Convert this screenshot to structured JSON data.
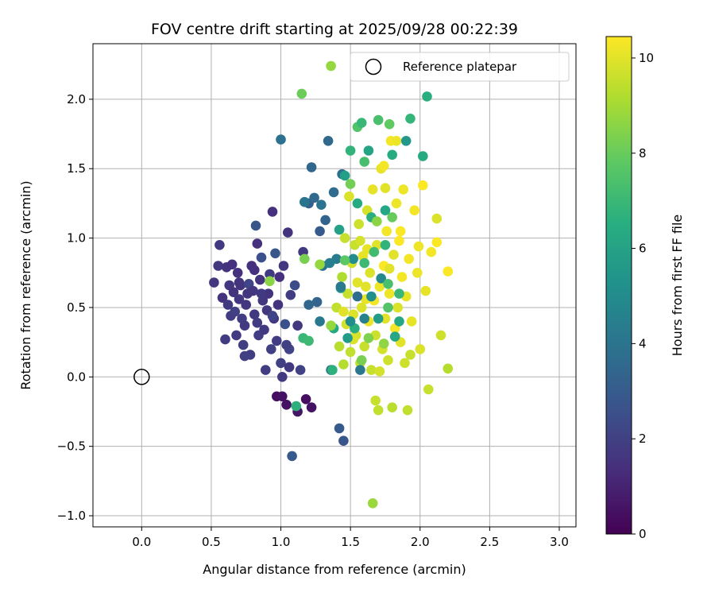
{
  "chart_data": {
    "type": "scatter",
    "title": "FOV centre drift starting at 2025/09/28 00:22:39",
    "xlabel": "Angular distance from reference (arcmin)",
    "ylabel": "Rotation from reference (arcmin)",
    "xlim": [
      -0.35,
      3.12
    ],
    "ylim": [
      -1.08,
      2.4
    ],
    "xticks": [
      0.0,
      0.5,
      1.0,
      1.5,
      2.0,
      2.5,
      3.0
    ],
    "xtick_labels": [
      "0.0",
      "0.5",
      "1.0",
      "1.5",
      "2.0",
      "2.5",
      "3.0"
    ],
    "yticks": [
      -1.0,
      -0.5,
      0.0,
      0.5,
      1.0,
      1.5,
      2.0
    ],
    "ytick_labels": [
      "−1.0",
      "−0.5",
      "0.0",
      "0.5",
      "1.0",
      "1.5",
      "2.0"
    ],
    "grid": true,
    "legend": {
      "position": "top-right",
      "entries": [
        "Reference platepar"
      ]
    },
    "reference_point": {
      "x": 0.0,
      "y": 0.0,
      "label": "Reference platepar"
    },
    "colorbar": {
      "label": "Hours from first FF file",
      "min": 0,
      "max": 10.45,
      "ticks": [
        0,
        2,
        4,
        6,
        8,
        10
      ],
      "tick_labels": [
        "0",
        "2",
        "4",
        "6",
        "8",
        "10"
      ],
      "colormap": "viridis"
    },
    "points": [
      [
        0.52,
        0.68,
        1.7
      ],
      [
        0.56,
        0.95,
        1.8
      ],
      [
        0.55,
        0.8,
        1.7
      ],
      [
        0.58,
        0.57,
        1.6
      ],
      [
        0.6,
        0.27,
        1.9
      ],
      [
        0.61,
        0.79,
        1.6
      ],
      [
        0.62,
        0.52,
        1.8
      ],
      [
        0.63,
        0.66,
        1.7
      ],
      [
        0.64,
        0.44,
        1.9
      ],
      [
        0.65,
        0.81,
        1.5
      ],
      [
        0.66,
        0.61,
        1.6
      ],
      [
        0.67,
        0.47,
        2.0
      ],
      [
        0.68,
        0.3,
        1.8
      ],
      [
        0.69,
        0.75,
        1.5
      ],
      [
        0.7,
        0.56,
        1.7
      ],
      [
        0.71,
        0.66,
        1.6
      ],
      [
        0.72,
        0.42,
        1.9
      ],
      [
        0.73,
        0.23,
        2.0
      ],
      [
        0.74,
        0.37,
        1.8
      ],
      [
        0.75,
        0.52,
        1.7
      ],
      [
        0.76,
        0.6,
        1.6
      ],
      [
        0.77,
        0.67,
        2.2
      ],
      [
        0.78,
        0.16,
        1.9
      ],
      [
        0.79,
        0.8,
        1.5
      ],
      [
        0.8,
        0.62,
        1.7
      ],
      [
        0.81,
        0.45,
        1.8
      ],
      [
        0.82,
        1.09,
        2.8
      ],
      [
        0.83,
        0.96,
        1.5
      ],
      [
        0.84,
        0.3,
        1.9
      ],
      [
        0.85,
        0.7,
        1.6
      ],
      [
        0.86,
        0.86,
        2.6
      ],
      [
        0.87,
        0.55,
        1.7
      ],
      [
        0.88,
        0.34,
        1.8
      ],
      [
        0.89,
        0.05,
        1.9
      ],
      [
        0.9,
        0.48,
        1.7
      ],
      [
        0.91,
        0.6,
        1.6
      ],
      [
        0.92,
        0.74,
        1.8
      ],
      [
        0.93,
        0.2,
        2.0
      ],
      [
        0.94,
        1.19,
        1.5
      ],
      [
        0.95,
        0.42,
        1.7
      ],
      [
        0.96,
        0.89,
        2.8
      ],
      [
        0.97,
        0.26,
        1.9
      ],
      [
        0.98,
        0.52,
        1.6
      ],
      [
        0.99,
        0.72,
        1.5
      ],
      [
        1.0,
        0.1,
        2.0
      ],
      [
        1.01,
        0.0,
        1.8
      ],
      [
        1.02,
        0.8,
        1.7
      ],
      [
        1.03,
        0.38,
        2.6
      ],
      [
        1.04,
        -0.2,
        0.5
      ],
      [
        1.05,
        1.04,
        1.6
      ],
      [
        1.06,
        0.2,
        2.2
      ],
      [
        1.07,
        0.59,
        1.9
      ],
      [
        1.08,
        -0.57,
        3.0
      ],
      [
        1.1,
        0.66,
        2.4
      ],
      [
        1.12,
        -0.25,
        0.6
      ],
      [
        1.14,
        0.05,
        2.1
      ],
      [
        1.16,
        0.9,
        1.8
      ],
      [
        1.18,
        -0.16,
        0.4
      ],
      [
        1.2,
        1.25,
        3.2
      ],
      [
        1.22,
        -0.22,
        0.5
      ],
      [
        1.24,
        1.29,
        3.6
      ],
      [
        1.26,
        0.54,
        3.4
      ],
      [
        1.28,
        0.4,
        4.2
      ],
      [
        1.3,
        0.8,
        4.0
      ],
      [
        1.32,
        1.13,
        3.4
      ],
      [
        1.34,
        1.7,
        3.6
      ],
      [
        1.36,
        0.05,
        4.0
      ],
      [
        1.38,
        1.33,
        3.7
      ],
      [
        1.4,
        0.85,
        4.4
      ],
      [
        1.42,
        -0.37,
        3.0
      ],
      [
        1.44,
        1.46,
        3.8
      ],
      [
        1.45,
        -0.46,
        2.8
      ],
      [
        1.0,
        1.71,
        3.9
      ],
      [
        1.06,
        0.07,
        1.8
      ],
      [
        0.97,
        -0.14,
        0.4
      ],
      [
        1.01,
        -0.14,
        0.5
      ],
      [
        1.11,
        -0.21,
        6.7
      ],
      [
        1.12,
        0.37,
        1.7
      ],
      [
        0.86,
        0.6,
        1.8
      ],
      [
        0.94,
        0.44,
        2.2
      ],
      [
        0.83,
        0.39,
        1.9
      ],
      [
        0.7,
        0.68,
        1.6
      ],
      [
        0.74,
        0.15,
        2.0
      ],
      [
        0.81,
        0.77,
        1.5
      ],
      [
        1.04,
        0.23,
        2.0
      ],
      [
        1.22,
        1.51,
        3.5
      ],
      [
        1.29,
        1.24,
        4.0
      ],
      [
        1.35,
        0.82,
        4.5
      ],
      [
        1.17,
        1.26,
        4.1
      ],
      [
        1.15,
        2.04,
        8.1
      ],
      [
        1.36,
        2.24,
        8.8
      ],
      [
        1.4,
        0.5,
        9.5
      ],
      [
        1.42,
        0.22,
        9.4
      ],
      [
        1.44,
        0.72,
        9.2
      ],
      [
        1.45,
        0.09,
        9.3
      ],
      [
        1.46,
        1.0,
        9.6
      ],
      [
        1.47,
        0.38,
        9.8
      ],
      [
        1.48,
        0.6,
        9.6
      ],
      [
        1.49,
        1.3,
        9.9
      ],
      [
        1.5,
        0.18,
        9.5
      ],
      [
        1.51,
        0.82,
        9.7
      ],
      [
        1.52,
        0.45,
        9.9
      ],
      [
        1.53,
        0.95,
        9.6
      ],
      [
        1.54,
        0.3,
        9.8
      ],
      [
        1.55,
        0.68,
        10.0
      ],
      [
        1.56,
        1.1,
        9.7
      ],
      [
        1.57,
        0.1,
        9.5
      ],
      [
        1.58,
        0.5,
        9.9
      ],
      [
        1.59,
        0.87,
        10.1
      ],
      [
        1.6,
        0.22,
        9.6
      ],
      [
        1.61,
        0.65,
        10.0
      ],
      [
        1.62,
        1.2,
        9.8
      ],
      [
        1.63,
        0.4,
        10.2
      ],
      [
        1.64,
        0.75,
        9.9
      ],
      [
        1.65,
        0.05,
        9.6
      ],
      [
        1.66,
        1.35,
        10.1
      ],
      [
        1.67,
        0.55,
        10.3
      ],
      [
        1.68,
        0.3,
        9.7
      ],
      [
        1.69,
        0.95,
        10.0
      ],
      [
        1.7,
        -0.24,
        9.5
      ],
      [
        1.71,
        0.65,
        10.2
      ],
      [
        1.72,
        1.5,
        10.1
      ],
      [
        1.73,
        0.2,
        9.8
      ],
      [
        1.74,
        0.8,
        10.4
      ],
      [
        1.75,
        0.42,
        10.0
      ],
      [
        1.76,
        1.05,
        10.3
      ],
      [
        1.77,
        0.12,
        9.7
      ],
      [
        1.78,
        0.6,
        10.2
      ],
      [
        1.79,
        1.7,
        10.3
      ],
      [
        1.8,
        -0.22,
        9.4
      ],
      [
        1.81,
        0.88,
        10.0
      ],
      [
        1.82,
        0.35,
        10.3
      ],
      [
        1.83,
        1.25,
        10.2
      ],
      [
        1.84,
        0.5,
        9.9
      ],
      [
        1.85,
        0.98,
        10.4
      ],
      [
        1.86,
        0.25,
        10.0
      ],
      [
        1.87,
        0.72,
        10.3
      ],
      [
        1.88,
        1.35,
        10.2
      ],
      [
        1.89,
        0.1,
        9.7
      ],
      [
        1.9,
        0.58,
        10.1
      ],
      [
        1.91,
        -0.24,
        9.5
      ],
      [
        1.92,
        0.85,
        10.3
      ],
      [
        1.94,
        0.4,
        10.1
      ],
      [
        1.96,
        1.2,
        10.3
      ],
      [
        1.98,
        0.75,
        10.2
      ],
      [
        2.0,
        0.2,
        9.9
      ],
      [
        2.02,
        1.38,
        10.4
      ],
      [
        2.04,
        0.62,
        10.1
      ],
      [
        2.06,
        -0.09,
        9.6
      ],
      [
        2.08,
        0.9,
        10.3
      ],
      [
        2.12,
        1.14,
        9.9
      ],
      [
        2.15,
        0.3,
        9.7
      ],
      [
        2.2,
        0.06,
        9.3
      ],
      [
        2.2,
        0.76,
        10.4
      ],
      [
        1.66,
        -0.91,
        8.9
      ],
      [
        1.68,
        -0.17,
        9.6
      ],
      [
        1.75,
        1.36,
        10.0
      ],
      [
        1.57,
        0.98,
        9.8
      ],
      [
        1.62,
        0.92,
        10.1
      ],
      [
        1.83,
        1.7,
        10.2
      ],
      [
        1.74,
        1.52,
        10.3
      ],
      [
        1.86,
        1.05,
        10.4
      ],
      [
        1.71,
        0.04,
        9.8
      ],
      [
        1.93,
        0.16,
        9.6
      ],
      [
        1.99,
        0.94,
        10.2
      ],
      [
        2.12,
        0.97,
        10.4
      ],
      [
        1.45,
        0.47,
        10.0
      ],
      [
        1.52,
        0.27,
        9.9
      ],
      [
        1.78,
        0.78,
        10.0
      ],
      [
        1.61,
        0.56,
        10.1
      ],
      [
        1.5,
        1.39,
        8.2
      ],
      [
        1.55,
        1.8,
        7.6
      ],
      [
        1.6,
        1.55,
        7.3
      ],
      [
        1.65,
        1.15,
        6.6
      ],
      [
        1.7,
        1.85,
        7.4
      ],
      [
        1.75,
        0.95,
        6.8
      ],
      [
        1.8,
        1.6,
        6.5
      ],
      [
        1.85,
        0.4,
        6.2
      ],
      [
        1.9,
        1.7,
        5.6
      ],
      [
        1.93,
        1.86,
        6.9
      ],
      [
        2.02,
        1.59,
        6.4
      ],
      [
        2.05,
        2.02,
        6.6
      ],
      [
        1.58,
        1.83,
        7.0
      ],
      [
        1.63,
        1.63,
        6.1
      ],
      [
        1.5,
        1.63,
        6.8
      ],
      [
        1.48,
        0.28,
        5.7
      ],
      [
        1.43,
        0.64,
        5.4
      ],
      [
        1.38,
        0.35,
        6.3
      ],
      [
        1.6,
        0.82,
        7.1
      ],
      [
        1.7,
        0.42,
        5.8
      ],
      [
        1.82,
        0.29,
        6.2
      ],
      [
        1.77,
        0.5,
        7.6
      ],
      [
        1.65,
        0.58,
        5.2
      ],
      [
        1.57,
        0.05,
        4.2
      ],
      [
        1.52,
        0.85,
        5.1
      ],
      [
        1.46,
        1.45,
        5.9
      ],
      [
        1.42,
        1.06,
        6.0
      ],
      [
        1.85,
        0.6,
        7.0
      ],
      [
        1.72,
        0.71,
        4.9
      ],
      [
        1.53,
        0.35,
        6.6
      ],
      [
        1.46,
        0.84,
        7.8
      ],
      [
        1.63,
        0.28,
        8.4
      ],
      [
        1.74,
        0.24,
        8.7
      ],
      [
        1.58,
        0.12,
        8.3
      ],
      [
        1.69,
        1.12,
        8.6
      ],
      [
        1.8,
        1.15,
        8.0
      ],
      [
        1.75,
        1.2,
        6.2
      ],
      [
        1.67,
        0.9,
        7.2
      ],
      [
        1.55,
        1.25,
        6.4
      ],
      [
        1.37,
        0.05,
        6.7
      ],
      [
        1.16,
        0.28,
        7.0
      ],
      [
        1.17,
        0.85,
        8.3
      ],
      [
        1.2,
        0.26,
        7.1
      ],
      [
        1.5,
        0.4,
        5.1
      ],
      [
        1.6,
        0.42,
        4.6
      ],
      [
        1.2,
        0.52,
        3.5
      ],
      [
        1.28,
        1.05,
        3.0
      ],
      [
        1.43,
        0.65,
        4.3
      ],
      [
        1.55,
        0.58,
        3.8
      ],
      [
        1.28,
        0.81,
        8.8
      ],
      [
        0.92,
        0.69,
        8.6
      ],
      [
        1.36,
        0.37,
        8.8
      ],
      [
        1.77,
        0.67,
        7.4
      ],
      [
        1.78,
        1.82,
        7.9
      ]
    ]
  }
}
